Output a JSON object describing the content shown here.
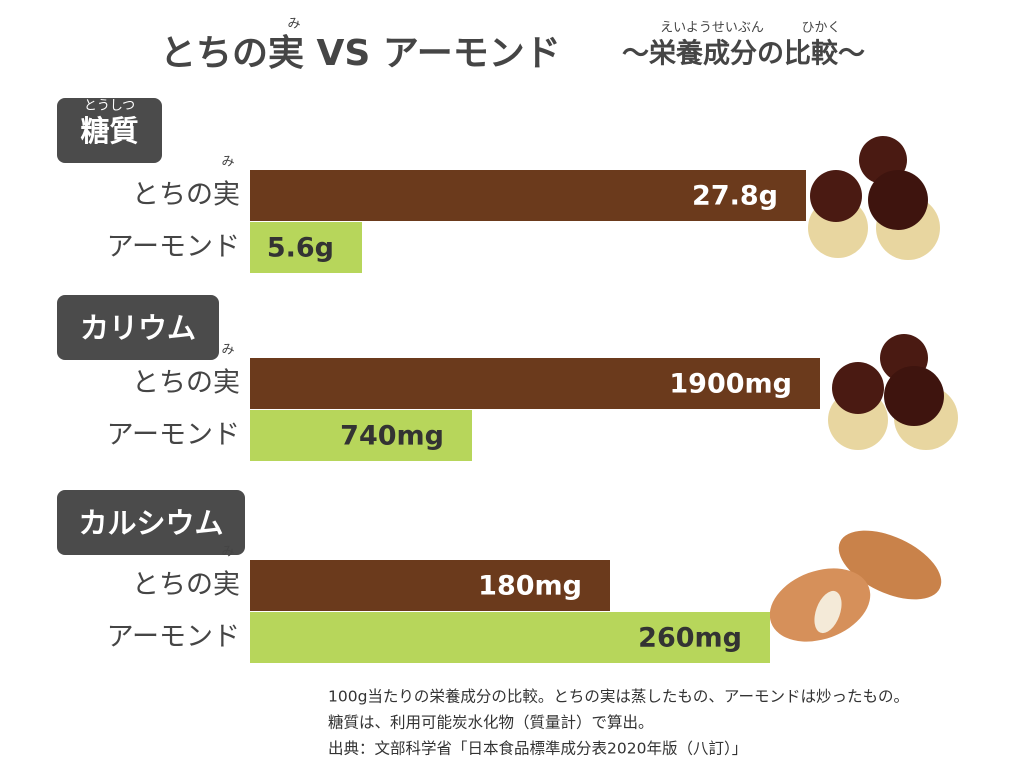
{
  "header": {
    "title": "とちの実 VS アーモンド",
    "title_ruby": "み",
    "subtitle": "〜栄養成分の比較〜",
    "subtitle_ruby": [
      "えいようせいぶん",
      "ひかく"
    ]
  },
  "chart_data": [
    {
      "type": "bar",
      "orientation": "horizontal",
      "title": "糖質",
      "title_ruby": "とうしつ",
      "categories": [
        "とちの実",
        "アーモンド"
      ],
      "category_ruby": "み",
      "values": [
        27.8,
        5.6
      ],
      "value_labels": [
        "27.8g",
        "5.6g"
      ],
      "colors": [
        "#6b3a1c",
        "#b7d65b"
      ],
      "xlim": [
        0,
        30
      ]
    },
    {
      "type": "bar",
      "orientation": "horizontal",
      "title": "カリウム",
      "categories": [
        "とちの実",
        "アーモンド"
      ],
      "category_ruby": "み",
      "values": [
        1900,
        740
      ],
      "value_labels": [
        "1900mg",
        "740mg"
      ],
      "colors": [
        "#6b3a1c",
        "#b7d65b"
      ],
      "xlim": [
        0,
        2000
      ]
    },
    {
      "type": "bar",
      "orientation": "horizontal",
      "title": "カルシウム",
      "categories": [
        "とちの実",
        "アーモンド"
      ],
      "category_ruby": "み",
      "values": [
        180,
        260
      ],
      "value_labels": [
        "180mg",
        "260mg"
      ],
      "colors": [
        "#6b3a1c",
        "#b7d65b"
      ],
      "xlim": [
        0,
        300
      ]
    }
  ],
  "notes": [
    "100g当たりの栄養成分の比較。とちの実は蒸したもの、アーモンドは炒ったもの。",
    "糖質は、利用可能炭水化物（質量計）で算出。",
    "出典：文部科学省「日本食品標準成分表2020年版（八訂）」"
  ]
}
